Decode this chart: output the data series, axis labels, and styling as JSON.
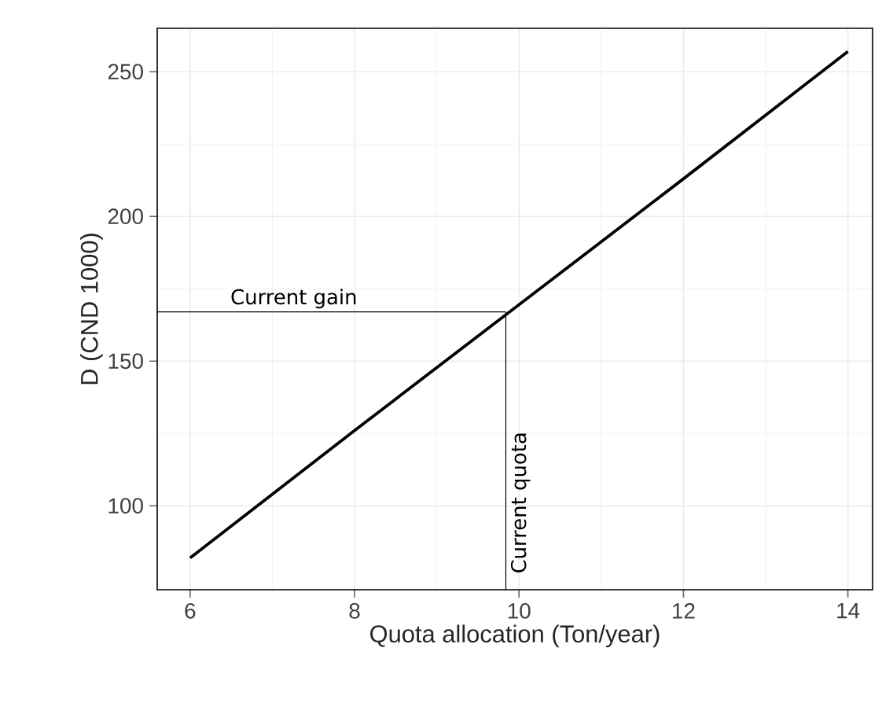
{
  "chart_data": {
    "type": "line",
    "xlabel": "Quota allocation (Ton/year)",
    "ylabel": "D (CND 1000)",
    "x": [
      6,
      8,
      10,
      12,
      14
    ],
    "series": [
      {
        "color": "#000000",
        "values": [
          82,
          126,
          169.5,
          213,
          257
        ]
      }
    ],
    "xlim": [
      5.6,
      14.3
    ],
    "ylim": [
      71,
      265
    ],
    "xticks": [
      6,
      8,
      10,
      12,
      14
    ],
    "yticks": [
      100,
      150,
      200,
      250
    ],
    "grid": true,
    "marker": "none",
    "line_style": "solid",
    "ref_lines": [
      {
        "axis": "y",
        "value": 167,
        "label": "Current gain",
        "color": "#000000"
      },
      {
        "axis": "x",
        "value": 9.84,
        "label": "Current quota",
        "color": "#000000"
      }
    ]
  }
}
